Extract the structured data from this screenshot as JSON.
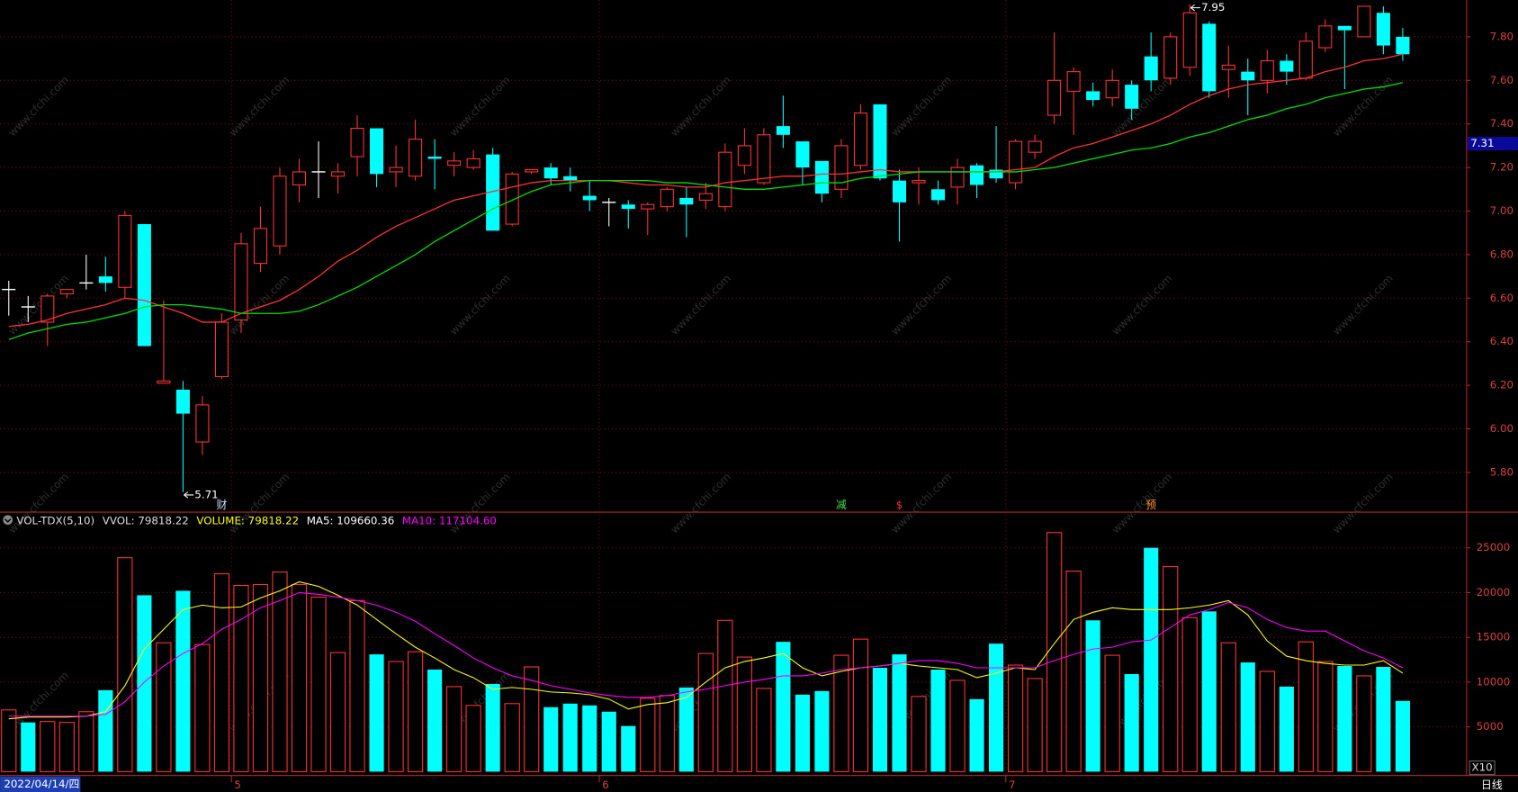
{
  "chart_data": [
    {
      "type": "candlestick",
      "categories": [
        "2022/04/14/四",
        null,
        null,
        null,
        null,
        null,
        null,
        null,
        null,
        null,
        null,
        null,
        "5",
        null,
        null,
        null,
        null,
        null,
        null,
        null,
        null,
        null,
        null,
        null,
        null,
        null,
        null,
        null,
        null,
        null,
        null,
        "6",
        null,
        null,
        null,
        null,
        null,
        null,
        null,
        null,
        null,
        null,
        null,
        null,
        null,
        null,
        null,
        null,
        null,
        null,
        null,
        null,
        "7",
        null,
        null,
        null,
        null,
        null,
        null,
        null,
        null,
        null,
        null,
        null,
        null,
        null,
        null,
        null,
        null,
        null,
        null,
        null,
        null
      ],
      "open": [
        6.64,
        6.56,
        6.49,
        6.62,
        6.67,
        6.7,
        6.65,
        6.94,
        6.21,
        6.18,
        5.94,
        6.24,
        6.5,
        6.76,
        6.84,
        7.12,
        7.18,
        7.16,
        7.25,
        7.38,
        7.18,
        7.16,
        7.25,
        7.21,
        7.2,
        7.26,
        6.94,
        7.18,
        7.2,
        7.16,
        7.07,
        7.04,
        7.03,
        7.01,
        7.02,
        7.06,
        7.05,
        7.02,
        7.21,
        7.13,
        7.39,
        7.32,
        7.23,
        7.1,
        7.21,
        7.49,
        7.14,
        7.13,
        7.1,
        7.11,
        7.21,
        7.19,
        7.13,
        7.27,
        7.44,
        7.55,
        7.55,
        7.52,
        7.58,
        7.71,
        7.61,
        7.66,
        7.86,
        7.65,
        7.64,
        7.6,
        7.69,
        7.61,
        7.75,
        7.85,
        7.8,
        7.91,
        7.8
      ],
      "high": [
        6.68,
        6.61,
        6.62,
        6.64,
        6.8,
        6.79,
        7.0,
        6.94,
        6.59,
        6.22,
        6.15,
        6.53,
        6.9,
        7.02,
        7.2,
        7.24,
        7.32,
        7.22,
        7.44,
        7.38,
        7.3,
        7.42,
        7.33,
        7.27,
        7.28,
        7.29,
        7.18,
        7.19,
        7.22,
        7.2,
        7.14,
        7.06,
        7.05,
        7.04,
        7.11,
        7.11,
        7.13,
        7.31,
        7.38,
        7.38,
        7.53,
        7.32,
        7.23,
        7.33,
        7.49,
        7.49,
        7.19,
        7.2,
        7.14,
        7.24,
        7.22,
        7.39,
        7.33,
        7.35,
        7.82,
        7.66,
        7.59,
        7.65,
        7.6,
        7.82,
        7.82,
        7.95,
        7.87,
        7.76,
        7.7,
        7.74,
        7.72,
        7.82,
        7.88,
        7.85,
        7.94,
        7.94,
        7.84
      ],
      "low": [
        6.52,
        6.49,
        6.38,
        6.6,
        6.64,
        6.63,
        6.6,
        6.38,
        6.21,
        5.71,
        5.88,
        6.23,
        6.44,
        6.72,
        6.8,
        7.04,
        7.06,
        7.08,
        7.16,
        7.11,
        7.11,
        7.14,
        7.1,
        7.16,
        7.19,
        6.91,
        6.93,
        7.17,
        7.12,
        7.09,
        7.0,
        6.93,
        6.92,
        6.89,
        7.0,
        6.88,
        7.01,
        7.0,
        7.17,
        7.12,
        7.29,
        7.12,
        7.04,
        7.06,
        7.19,
        7.14,
        6.86,
        7.03,
        7.03,
        7.03,
        7.06,
        7.13,
        7.1,
        7.24,
        7.4,
        7.35,
        7.48,
        7.48,
        7.42,
        7.55,
        7.58,
        7.62,
        7.52,
        7.52,
        7.44,
        7.54,
        7.58,
        7.6,
        7.73,
        7.56,
        7.8,
        7.72,
        7.69
      ],
      "close": [
        6.64,
        6.56,
        6.61,
        6.64,
        6.67,
        6.67,
        6.98,
        6.38,
        6.22,
        6.07,
        6.11,
        6.49,
        6.85,
        6.92,
        7.16,
        7.18,
        7.18,
        7.18,
        7.38,
        7.17,
        7.2,
        7.33,
        7.24,
        7.23,
        7.24,
        6.91,
        7.17,
        7.19,
        7.15,
        7.14,
        7.05,
        7.04,
        7.01,
        7.03,
        7.1,
        7.03,
        7.08,
        7.27,
        7.3,
        7.35,
        7.35,
        7.2,
        7.08,
        7.3,
        7.45,
        7.15,
        7.04,
        7.14,
        7.05,
        7.2,
        7.12,
        7.15,
        7.32,
        7.32,
        7.6,
        7.64,
        7.51,
        7.6,
        7.47,
        7.6,
        7.8,
        7.91,
        7.55,
        7.67,
        7.6,
        7.69,
        7.64,
        7.78,
        7.85,
        7.83,
        7.94,
        7.76,
        7.72
      ],
      "up_color": "#ff3232",
      "down_color": "#00ffff",
      "doji_color": "#ffffff",
      "series": [
        {
          "color": "#ff3232",
          "values": [
            6.47,
            6.48,
            6.5,
            6.53,
            6.55,
            6.57,
            6.6,
            6.59,
            6.56,
            6.53,
            6.49,
            6.49,
            6.53,
            6.56,
            6.59,
            6.64,
            6.7,
            6.77,
            6.82,
            6.88,
            6.93,
            6.97,
            7.01,
            7.05,
            7.07,
            7.09,
            7.11,
            7.13,
            7.14,
            7.14,
            7.14,
            7.14,
            7.13,
            7.12,
            7.12,
            7.11,
            7.11,
            7.13,
            7.14,
            7.15,
            7.16,
            7.16,
            7.17,
            7.17,
            7.18,
            7.19,
            7.18,
            7.18,
            7.18,
            7.18,
            7.18,
            7.18,
            7.19,
            7.2,
            7.25,
            7.29,
            7.31,
            7.34,
            7.37,
            7.4,
            7.44,
            7.49,
            7.53,
            7.56,
            7.58,
            7.59,
            7.6,
            7.61,
            7.64,
            7.66,
            7.69,
            7.7,
            7.72
          ]
        },
        {
          "color": "#00e000",
          "values": [
            6.41,
            6.44,
            6.46,
            6.48,
            6.49,
            6.51,
            6.53,
            6.56,
            6.57,
            6.57,
            6.56,
            6.55,
            6.53,
            6.53,
            6.53,
            6.54,
            6.57,
            6.61,
            6.65,
            6.7,
            6.75,
            6.8,
            6.86,
            6.91,
            6.96,
            7.01,
            7.05,
            7.09,
            7.12,
            7.13,
            7.14,
            7.14,
            7.14,
            7.14,
            7.13,
            7.13,
            7.12,
            7.11,
            7.1,
            7.1,
            7.11,
            7.12,
            7.13,
            7.13,
            7.15,
            7.16,
            7.17,
            7.18,
            7.18,
            7.18,
            7.18,
            7.18,
            7.18,
            7.19,
            7.2,
            7.22,
            7.24,
            7.26,
            7.28,
            7.29,
            7.31,
            7.34,
            7.36,
            7.39,
            7.42,
            7.44,
            7.47,
            7.49,
            7.52,
            7.54,
            7.56,
            7.57,
            7.59
          ]
        }
      ],
      "ylim": [
        5.622,
        7.969
      ],
      "yticks": [
        {
          "value": 7.8,
          "label": "7.80"
        },
        {
          "value": 7.6,
          "label": "7.60"
        },
        {
          "value": 7.4,
          "label": "7.40"
        },
        {
          "value": 7.2,
          "label": "7.20"
        },
        {
          "value": 7.0,
          "label": "7.00"
        },
        {
          "value": 6.8,
          "label": "6.80"
        },
        {
          "value": 6.6,
          "label": "6.60"
        },
        {
          "value": 6.4,
          "label": "6.40"
        },
        {
          "value": 6.2,
          "label": "6.20"
        },
        {
          "value": 6.0,
          "label": "6.00"
        },
        {
          "value": 5.8,
          "label": "5.80"
        }
      ],
      "grid": true,
      "last_price": 7.31,
      "annotations": [
        {
          "value": 7.95
        },
        {
          "value": 5.71
        }
      ],
      "events": [
        null,
        null,
        null,
        null,
        null,
        null,
        null,
        null,
        null,
        null,
        null,
        {
          "label": "财",
          "color": "#c8d8ff"
        },
        null,
        null,
        null,
        null,
        null,
        null,
        null,
        null,
        null,
        null,
        null,
        null,
        null,
        null,
        null,
        null,
        null,
        null,
        null,
        null,
        null,
        null,
        null,
        null,
        null,
        null,
        null,
        null,
        null,
        null,
        null,
        {
          "label": "减",
          "color": "#40e040"
        },
        null,
        null,
        {
          "label": "$",
          "color": "#ff3232"
        },
        null,
        null,
        null,
        null,
        null,
        null,
        null,
        null,
        null,
        null,
        null,
        null,
        {
          "label": "预",
          "color": "#ff9a20"
        },
        null,
        null,
        null,
        null,
        null,
        null,
        null,
        null,
        null,
        null,
        null,
        null,
        null
      ],
      "period": "日线",
      "watermark": "www.cfchi.com"
    },
    {
      "type": "bar",
      "header": [
        {
          "text": "VOL-TDX(5,10)",
          "color": "#dddddd"
        },
        {
          "text": "VVOL: 79818.22",
          "color": "#dddddd"
        },
        {
          "text": "VOLUME: 79818.22",
          "color": "#ffff00"
        },
        {
          "text": "MA5: 109660.36",
          "color": "#ffffff"
        },
        {
          "text": "MA10: 117104.60",
          "color": "#ff00ff"
        }
      ],
      "values": [
        6900,
        5500,
        5600,
        5500,
        6700,
        9100,
        23900,
        19700,
        14400,
        20200,
        14200,
        22100,
        20800,
        20900,
        22300,
        20900,
        19500,
        13300,
        19100,
        13100,
        12300,
        13400,
        11400,
        9500,
        7400,
        9800,
        7600,
        11700,
        7200,
        7600,
        7400,
        6700,
        5100,
        8200,
        8500,
        9400,
        13200,
        16900,
        12800,
        9300,
        14500,
        8600,
        9000,
        13000,
        14800,
        11600,
        13100,
        8400,
        11400,
        10200,
        8100,
        14300,
        11900,
        10400,
        26700,
        22400,
        16900,
        13000,
        10900,
        25000,
        22900,
        17200,
        17900,
        14400,
        12200,
        11200,
        9500,
        14500,
        12300,
        11800,
        10700,
        11700,
        7900
      ],
      "series": [
        {
          "color": "#ffff00",
          "values": [
            5900,
            6100,
            6100,
            6100,
            6200,
            6700,
            9600,
            13700,
            15900,
            18100,
            18600,
            18300,
            18400,
            19400,
            20200,
            21200,
            20700,
            19700,
            18600,
            17000,
            15400,
            13900,
            12700,
            11400,
            10500,
            9200,
            9400,
            9200,
            8900,
            8800,
            8600,
            8100,
            7000,
            7500,
            7700,
            8300,
            10000,
            11600,
            12300,
            12700,
            13200,
            11600,
            10700,
            11200,
            11600,
            11800,
            12100,
            11800,
            11600,
            11400,
            10500,
            11000,
            11600,
            11400,
            14300,
            17000,
            17800,
            18300,
            18100,
            18100,
            18100,
            18300,
            18600,
            19100,
            17500,
            14600,
            12900,
            12400,
            12100,
            11900,
            11900,
            12400,
            11000
          ]
        },
        {
          "color": "#ff00ff",
          "values": [
            6200,
            6200,
            6200,
            6200,
            6200,
            6400,
            7800,
            10000,
            11800,
            13200,
            14300,
            15900,
            17000,
            18300,
            19100,
            20000,
            19800,
            19500,
            19100,
            18600,
            17800,
            16800,
            15400,
            14100,
            12700,
            11600,
            10700,
            10200,
            9600,
            9200,
            8800,
            8500,
            8300,
            8300,
            8500,
            8900,
            9200,
            9600,
            10000,
            10300,
            10700,
            10700,
            11000,
            11400,
            11600,
            11800,
            12100,
            12400,
            12400,
            12100,
            11600,
            11600,
            11600,
            11600,
            12400,
            13100,
            13700,
            13900,
            14500,
            14700,
            16100,
            17500,
            18100,
            18900,
            18300,
            17000,
            16100,
            15700,
            15700,
            14600,
            13500,
            12700,
            11600
          ]
        }
      ],
      "ylim": [
        0,
        27250
      ],
      "yticks": [
        5000,
        10000,
        15000,
        20000,
        25000
      ],
      "grid": true,
      "multiplier": "X10"
    }
  ]
}
